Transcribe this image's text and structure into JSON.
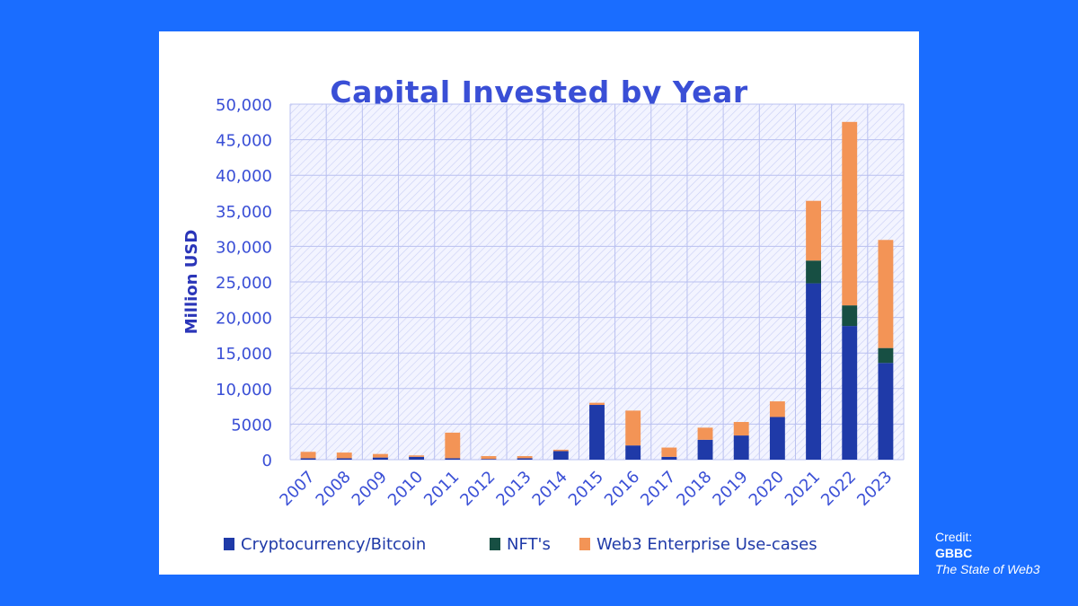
{
  "chart_data": {
    "type": "bar",
    "stacked": true,
    "title": "Capital Invested by Year",
    "xlabel": "",
    "ylabel": "Million USD",
    "ylim": [
      0,
      50000
    ],
    "yticks": [
      0,
      5000,
      10000,
      15000,
      20000,
      25000,
      30000,
      35000,
      40000,
      45000,
      50000
    ],
    "ytick_labels": [
      "0",
      "5000",
      "10,000",
      "15,000",
      "20,000",
      "25,000",
      "30,000",
      "35,000",
      "40,000",
      "45,000",
      "50,000"
    ],
    "grid": true,
    "legend_position": "bottom",
    "categories": [
      "2007",
      "2008",
      "2009",
      "2010",
      "2011",
      "2012",
      "2013",
      "2014",
      "2015",
      "2016",
      "2017",
      "2018",
      "2019",
      "2020",
      "2021",
      "2022",
      "2023"
    ],
    "series": [
      {
        "name": "Cryptocurrency/Bitcoin",
        "color": "#1f3aa8",
        "values": [
          200,
          200,
          300,
          400,
          200,
          100,
          200,
          1200,
          7700,
          2000,
          400,
          2800,
          3400,
          6000,
          24800,
          18800,
          13600
        ]
      },
      {
        "name": "NFT's",
        "color": "#174f43",
        "values": [
          0,
          0,
          0,
          0,
          0,
          0,
          0,
          0,
          0,
          0,
          0,
          0,
          0,
          0,
          3200,
          2900,
          2100
        ]
      },
      {
        "name": "Web3 Enterprise Use-cases",
        "color": "#f39456",
        "values": [
          900,
          800,
          500,
          200,
          3600,
          400,
          300,
          200,
          300,
          4900,
          1300,
          1700,
          1900,
          2200,
          8400,
          25800,
          15200
        ]
      }
    ]
  },
  "credit": {
    "label": "Credit:",
    "org": "GBBC",
    "source": "The State of Web3"
  },
  "colors": {
    "background": "#1a6dff",
    "card": "#ffffff",
    "title": "#3a4fd6",
    "axis_text": "#3a4fd6",
    "ylabel": "#2a35b8"
  }
}
